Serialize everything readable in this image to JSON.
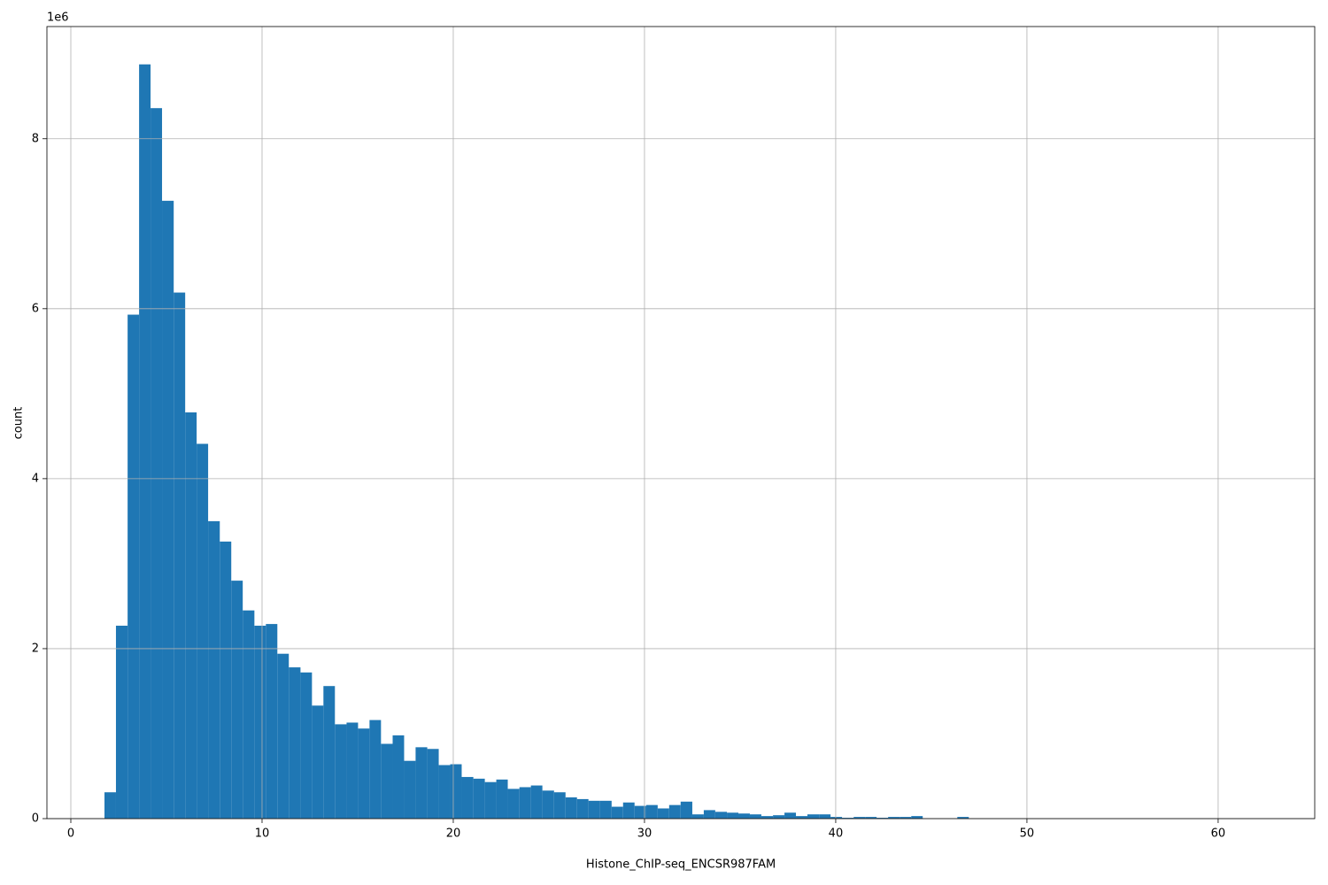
{
  "chart_data": {
    "type": "histogram",
    "x_label": "Histone_ChIP-seq_ENCSR987FAM",
    "y_label": "count",
    "y_offset_label": "1e6",
    "color": "#1f77b4",
    "grid": true,
    "bins": [
      1.76,
      2.36,
      2.97,
      3.57,
      4.17,
      4.77,
      5.38,
      5.98,
      6.58,
      7.18,
      7.79,
      8.39,
      8.99,
      9.6,
      10.2,
      10.8,
      11.4,
      12.01,
      12.61,
      13.21,
      13.81,
      14.42,
      15.02,
      15.62,
      16.22,
      16.83,
      17.43,
      18.03,
      18.64,
      19.24,
      19.84,
      20.44,
      21.05,
      21.65,
      22.25,
      22.85,
      23.46,
      24.06,
      24.66,
      25.27,
      25.87,
      26.47,
      27.07,
      27.68,
      28.28,
      28.88,
      29.48,
      30.09,
      30.69,
      31.29,
      31.89,
      32.5,
      33.1,
      33.7,
      34.31,
      34.91,
      35.51,
      36.11,
      36.72,
      37.32,
      37.92,
      38.52,
      39.13,
      39.73,
      40.33,
      40.94,
      41.54,
      42.14,
      42.74,
      43.35,
      43.95,
      44.55,
      45.15,
      45.76,
      46.36,
      46.96,
      47.57,
      48.17,
      48.77,
      49.37,
      49.98,
      50.58,
      51.18,
      51.78,
      52.39,
      52.99,
      53.59,
      54.19,
      54.8,
      55.4,
      56.0,
      56.61,
      57.21,
      57.81,
      58.41,
      59.02,
      59.62,
      60.22,
      60.82,
      61.43,
      62.03
    ],
    "counts": [
      310000,
      2270000,
      5930000,
      8875000,
      8360000,
      7270000,
      6190000,
      4780000,
      4410000,
      3500000,
      3260000,
      2800000,
      2450000,
      2270000,
      2290000,
      1940000,
      1780000,
      1720000,
      1330000,
      1560000,
      1110000,
      1130000,
      1060000,
      1160000,
      880000,
      980000,
      680000,
      840000,
      820000,
      630000,
      640000,
      490000,
      470000,
      430000,
      460000,
      350000,
      370000,
      390000,
      330000,
      310000,
      250000,
      230000,
      210000,
      210000,
      140000,
      190000,
      150000,
      160000,
      120000,
      160000,
      200000,
      50000,
      100000,
      80000,
      70000,
      60000,
      50000,
      30000,
      40000,
      70000,
      30000,
      50000,
      50000,
      20000,
      10000,
      20000,
      20000,
      10000,
      20000,
      20000,
      30000,
      0,
      0,
      0,
      20000,
      0,
      0,
      0,
      0,
      0,
      0,
      0,
      0,
      0,
      0,
      0,
      0,
      0,
      0,
      0,
      0,
      0,
      0,
      0,
      0,
      0,
      0,
      0,
      0,
      0
    ],
    "xlim": [
      -1.25,
      65.05
    ],
    "xticks": [
      0,
      10,
      20,
      30,
      40,
      50,
      60
    ],
    "ylim": [
      0,
      9320000
    ],
    "yticks": [
      0,
      {
        "value": 2000000,
        "label": "2"
      },
      {
        "value": 4000000,
        "label": "4"
      },
      {
        "value": 6000000,
        "label": "6"
      },
      {
        "value": 8000000,
        "label": "8"
      }
    ]
  }
}
